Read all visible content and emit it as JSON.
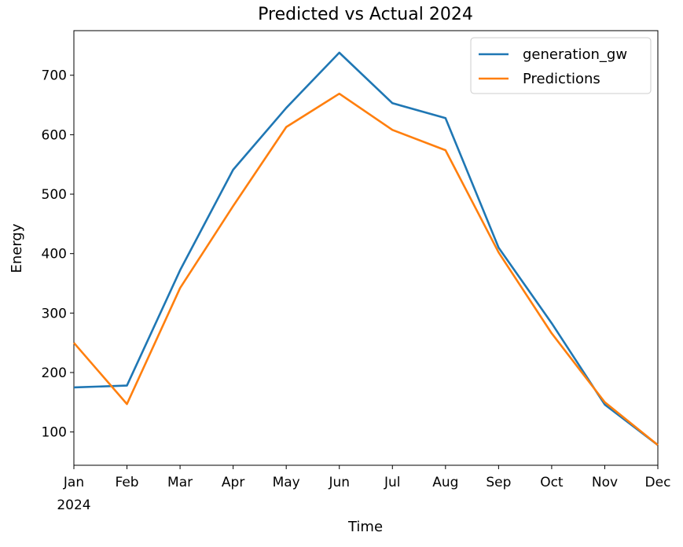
{
  "chart_data": {
    "type": "line",
    "title": "Predicted vs Actual 2024",
    "xlabel": "Time",
    "ylabel": "Energy",
    "categories": [
      "Jan",
      "Feb",
      "Mar",
      "Apr",
      "May",
      "Jun",
      "Jul",
      "Aug",
      "Sep",
      "Oct",
      "Nov",
      "Dec"
    ],
    "x_sublabel": "2024",
    "ylim": [
      44,
      775
    ],
    "yticks": [
      100,
      200,
      300,
      400,
      500,
      600,
      700
    ],
    "grid": false,
    "legend_position": "top-right",
    "series": [
      {
        "name": "generation_gw",
        "color": "#1f77b4",
        "values": [
          175,
          178,
          372,
          541,
          645,
          738,
          653,
          628,
          410,
          283,
          146,
          78
        ]
      },
      {
        "name": "Predictions",
        "color": "#ff7f0e",
        "values": [
          250,
          147,
          342,
          480,
          613,
          669,
          608,
          574,
          402,
          266,
          150,
          78
        ]
      }
    ]
  }
}
